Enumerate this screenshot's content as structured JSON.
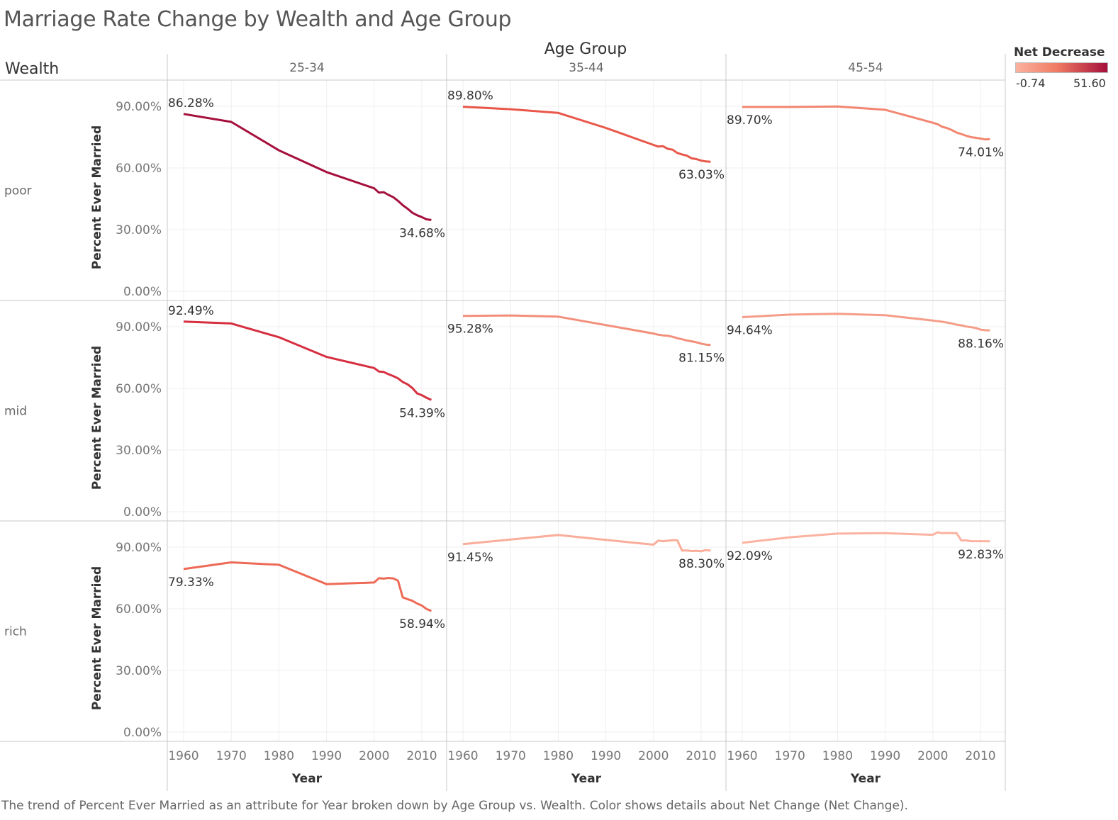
{
  "title": "Marriage Rate Change by Wealth and Age Group",
  "caption": "The trend of Percent Ever Married as an attribute for Year broken down by Age Group vs. Wealth.  Color shows details about Net Change (Net Change).",
  "legend": {
    "title": "Net Decrease",
    "min_label": "-0.74",
    "max_label": "51.60",
    "color_low": "#fbb2a0",
    "color_mid": "#f07b63",
    "color_high": "#a50f3c"
  },
  "chart_data": {
    "type": "line",
    "column_header": "Age Group",
    "row_header": "Wealth",
    "columns": [
      "25-34",
      "35-44",
      "45-54"
    ],
    "rows": [
      "poor",
      "mid",
      "rich"
    ],
    "xlabel": "Year",
    "ylabel": "Percent Ever Married",
    "x_ticks": [
      "1960",
      "1970",
      "1980",
      "1990",
      "2000",
      "2010"
    ],
    "y_ticks": [
      "0.00%",
      "30.00%",
      "60.00%",
      "90.00%"
    ],
    "xlim": [
      1957,
      2015
    ],
    "ylim": [
      0,
      100
    ],
    "grid": true,
    "panels": [
      {
        "wealth": "poor",
        "age": "25-34",
        "net_decrease": 51.6,
        "color": "#a50f3c",
        "start_label": "86.28%",
        "end_label": "34.68%",
        "points": [
          [
            1960,
            86.28
          ],
          [
            1970,
            82.4
          ],
          [
            1980,
            68.6
          ],
          [
            1990,
            58.0
          ],
          [
            2000,
            50.1
          ],
          [
            2001,
            48.0
          ],
          [
            2002,
            48.2
          ],
          [
            2003,
            46.9
          ],
          [
            2004,
            45.8
          ],
          [
            2005,
            44.0
          ],
          [
            2006,
            41.9
          ],
          [
            2007,
            40.2
          ],
          [
            2008,
            38.2
          ],
          [
            2009,
            37.0
          ],
          [
            2010,
            36.1
          ],
          [
            2011,
            35.0
          ],
          [
            2012,
            34.68
          ]
        ]
      },
      {
        "wealth": "poor",
        "age": "35-44",
        "net_decrease": 26.8,
        "color": "#e9574a",
        "start_label": "89.80%",
        "end_label": "63.03%",
        "points": [
          [
            1960,
            89.8
          ],
          [
            1970,
            88.6
          ],
          [
            1980,
            86.8
          ],
          [
            1990,
            79.5
          ],
          [
            2000,
            71.2
          ],
          [
            2001,
            70.4
          ],
          [
            2002,
            70.6
          ],
          [
            2003,
            69.3
          ],
          [
            2004,
            68.9
          ],
          [
            2005,
            67.3
          ],
          [
            2006,
            66.6
          ],
          [
            2007,
            66.0
          ],
          [
            2008,
            64.7
          ],
          [
            2009,
            64.3
          ],
          [
            2010,
            63.6
          ],
          [
            2011,
            63.2
          ],
          [
            2012,
            63.03
          ]
        ]
      },
      {
        "wealth": "poor",
        "age": "45-54",
        "net_decrease": 15.7,
        "color": "#f28671",
        "start_label": "89.70%",
        "end_label": "74.01%",
        "points": [
          [
            1960,
            89.7
          ],
          [
            1970,
            89.7
          ],
          [
            1980,
            89.9
          ],
          [
            1990,
            88.3
          ],
          [
            2000,
            82.0
          ],
          [
            2001,
            81.3
          ],
          [
            2002,
            80.0
          ],
          [
            2003,
            79.4
          ],
          [
            2004,
            78.4
          ],
          [
            2005,
            77.2
          ],
          [
            2006,
            76.5
          ],
          [
            2007,
            75.7
          ],
          [
            2008,
            75.0
          ],
          [
            2009,
            74.7
          ],
          [
            2010,
            74.3
          ],
          [
            2011,
            73.9
          ],
          [
            2012,
            74.01
          ]
        ]
      },
      {
        "wealth": "mid",
        "age": "25-34",
        "net_decrease": 38.1,
        "color": "#d62f40",
        "start_label": "92.49%",
        "end_label": "54.39%",
        "points": [
          [
            1960,
            92.49
          ],
          [
            1970,
            91.6
          ],
          [
            1980,
            84.9
          ],
          [
            1990,
            75.3
          ],
          [
            2000,
            69.9
          ],
          [
            2001,
            68.2
          ],
          [
            2002,
            68.0
          ],
          [
            2003,
            66.9
          ],
          [
            2004,
            66.0
          ],
          [
            2005,
            64.9
          ],
          [
            2006,
            63.1
          ],
          [
            2007,
            62.0
          ],
          [
            2008,
            60.2
          ],
          [
            2009,
            57.6
          ],
          [
            2010,
            56.7
          ],
          [
            2011,
            55.4
          ],
          [
            2012,
            54.39
          ]
        ]
      },
      {
        "wealth": "mid",
        "age": "35-44",
        "net_decrease": 14.1,
        "color": "#f28f7a",
        "start_label": "95.28%",
        "end_label": "81.15%",
        "points": [
          [
            1960,
            95.28
          ],
          [
            1970,
            95.5
          ],
          [
            1980,
            94.9
          ],
          [
            1990,
            90.8
          ],
          [
            2000,
            86.7
          ],
          [
            2001,
            86.1
          ],
          [
            2002,
            85.8
          ],
          [
            2003,
            85.6
          ],
          [
            2004,
            85.1
          ],
          [
            2005,
            84.4
          ],
          [
            2006,
            83.9
          ],
          [
            2007,
            83.3
          ],
          [
            2008,
            82.9
          ],
          [
            2009,
            82.4
          ],
          [
            2010,
            81.8
          ],
          [
            2011,
            81.3
          ],
          [
            2012,
            81.15
          ]
        ]
      },
      {
        "wealth": "mid",
        "age": "45-54",
        "net_decrease": 6.5,
        "color": "#f59d88",
        "start_label": "94.64%",
        "end_label": "88.16%",
        "points": [
          [
            1960,
            94.64
          ],
          [
            1970,
            95.9
          ],
          [
            1980,
            96.3
          ],
          [
            1990,
            95.6
          ],
          [
            2000,
            93.0
          ],
          [
            2001,
            92.7
          ],
          [
            2002,
            92.4
          ],
          [
            2003,
            92.0
          ],
          [
            2004,
            91.6
          ],
          [
            2005,
            91.0
          ],
          [
            2006,
            90.7
          ],
          [
            2007,
            90.1
          ],
          [
            2008,
            89.8
          ],
          [
            2009,
            89.4
          ],
          [
            2010,
            88.6
          ],
          [
            2011,
            88.3
          ],
          [
            2012,
            88.16
          ]
        ]
      },
      {
        "wealth": "rich",
        "age": "25-34",
        "net_decrease": 20.4,
        "color": "#ed6a56",
        "start_label": "79.33%",
        "end_label": "58.94%",
        "points": [
          [
            1960,
            79.33
          ],
          [
            1970,
            82.6
          ],
          [
            1980,
            81.4
          ],
          [
            1990,
            72.0
          ],
          [
            2000,
            72.8
          ],
          [
            2001,
            74.9
          ],
          [
            2002,
            74.7
          ],
          [
            2003,
            75.0
          ],
          [
            2004,
            74.8
          ],
          [
            2005,
            73.7
          ],
          [
            2006,
            65.6
          ],
          [
            2007,
            64.7
          ],
          [
            2008,
            63.9
          ],
          [
            2009,
            62.6
          ],
          [
            2010,
            61.6
          ],
          [
            2011,
            59.9
          ],
          [
            2012,
            58.94
          ]
        ]
      },
      {
        "wealth": "rich",
        "age": "35-44",
        "net_decrease": 3.2,
        "color": "#f9ad9a",
        "start_label": "91.45%",
        "end_label": "88.30%",
        "points": [
          [
            1960,
            91.45
          ],
          [
            1970,
            93.7
          ],
          [
            1980,
            95.9
          ],
          [
            1990,
            93.5
          ],
          [
            2000,
            91.2
          ],
          [
            2001,
            93.2
          ],
          [
            2002,
            92.9
          ],
          [
            2003,
            93.1
          ],
          [
            2004,
            93.4
          ],
          [
            2005,
            93.3
          ],
          [
            2006,
            88.3
          ],
          [
            2007,
            88.4
          ],
          [
            2008,
            88.1
          ],
          [
            2009,
            88.2
          ],
          [
            2010,
            88.0
          ],
          [
            2011,
            88.6
          ],
          [
            2012,
            88.3
          ]
        ]
      },
      {
        "wealth": "rich",
        "age": "45-54",
        "net_decrease": -0.74,
        "color": "#fbb2a0",
        "start_label": "92.09%",
        "end_label": "92.83%",
        "points": [
          [
            1960,
            92.09
          ],
          [
            1970,
            94.8
          ],
          [
            1980,
            96.6
          ],
          [
            1990,
            96.8
          ],
          [
            2000,
            96.0
          ],
          [
            2001,
            97.2
          ],
          [
            2002,
            96.8
          ],
          [
            2003,
            96.9
          ],
          [
            2004,
            96.8
          ],
          [
            2005,
            96.8
          ],
          [
            2006,
            93.2
          ],
          [
            2007,
            93.3
          ],
          [
            2008,
            92.9
          ],
          [
            2009,
            92.9
          ],
          [
            2010,
            92.9
          ],
          [
            2011,
            92.9
          ],
          [
            2012,
            92.83
          ]
        ]
      }
    ]
  }
}
